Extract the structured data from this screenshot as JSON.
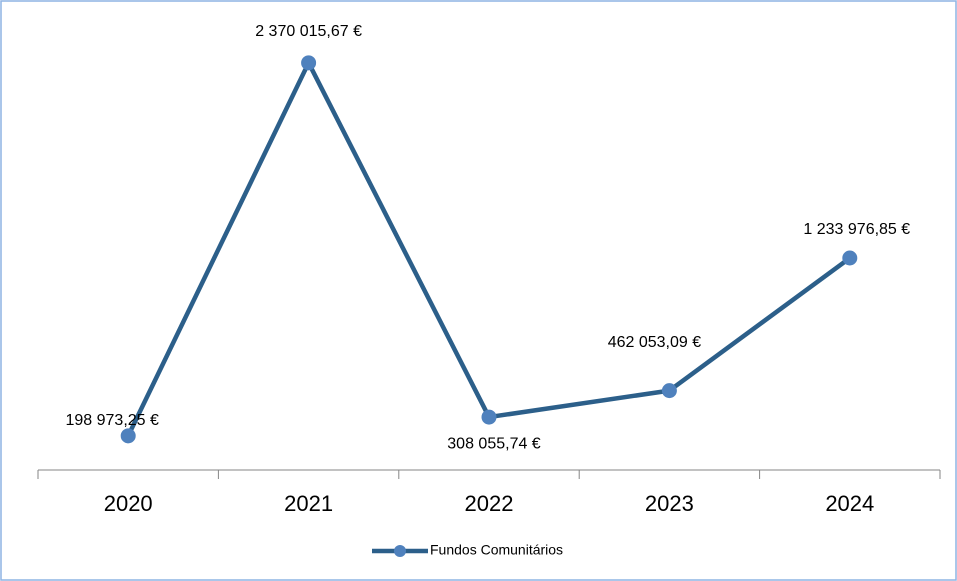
{
  "chart_data": {
    "type": "line",
    "categories": [
      "2020",
      "2021",
      "2022",
      "2023",
      "2024"
    ],
    "series": [
      {
        "name": "Fundos Comunitários",
        "color": "#2c5f8a",
        "marker_color": "#4f81bd",
        "values": [
          198973.25,
          2370015.67,
          308055.74,
          462053.09,
          1233976.85
        ],
        "value_labels": [
          "198 973,25 €",
          "2 370 015,67 €",
          "308 055,74 €",
          "462 053,09 €",
          "1 233 976,85 €"
        ]
      }
    ],
    "ylim": [
      0,
      2500000
    ],
    "legend": "bottom"
  }
}
